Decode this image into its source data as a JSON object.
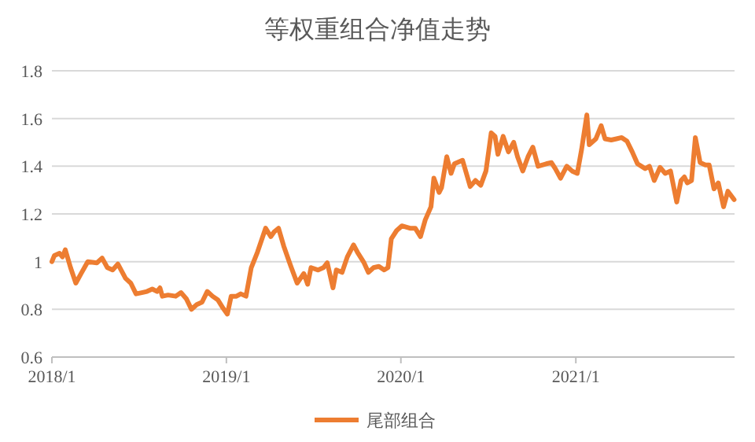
{
  "chart_data": {
    "type": "line",
    "title": "等权重组合净值走势",
    "x": [
      "2018-01-01",
      "2018-01-06",
      "2018-01-17",
      "2018-01-23",
      "2018-01-29",
      "2018-02-09",
      "2018-02-20",
      "2018-03-03",
      "2018-03-17",
      "2018-04-05",
      "2018-04-16",
      "2018-04-27",
      "2018-05-08",
      "2018-05-19",
      "2018-06-04",
      "2018-06-15",
      "2018-06-26",
      "2018-07-08",
      "2018-07-19",
      "2018-07-30",
      "2018-08-09",
      "2018-08-15",
      "2018-08-20",
      "2018-09-01",
      "2018-09-17",
      "2018-09-28",
      "2018-10-09",
      "2018-10-20",
      "2018-10-31",
      "2018-11-11",
      "2018-11-22",
      "2018-12-03",
      "2018-12-14",
      "2018-12-25",
      "2019-01-03",
      "2019-01-11",
      "2019-01-22",
      "2019-01-31",
      "2019-02-11",
      "2019-02-22",
      "2019-03-07",
      "2019-03-24",
      "2019-04-04",
      "2019-04-11",
      "2019-04-20",
      "2019-05-01",
      "2019-05-15",
      "2019-05-29",
      "2019-06-12",
      "2019-06-20",
      "2019-06-27",
      "2019-07-12",
      "2019-07-23",
      "2019-07-31",
      "2019-08-12",
      "2019-08-19",
      "2019-08-31",
      "2019-09-11",
      "2019-09-24",
      "2019-10-02",
      "2019-10-16",
      "2019-10-25",
      "2019-11-05",
      "2019-11-16",
      "2019-11-27",
      "2019-12-05",
      "2019-12-12",
      "2019-12-23",
      "2020-01-03",
      "2020-01-20",
      "2020-01-31",
      "2020-02-11",
      "2020-02-21",
      "2020-03-04",
      "2020-03-10",
      "2020-03-21",
      "2020-03-26",
      "2020-04-06",
      "2020-04-15",
      "2020-04-22",
      "2020-05-09",
      "2020-05-25",
      "2020-06-05",
      "2020-06-16",
      "2020-06-27",
      "2020-07-08",
      "2020-07-16",
      "2020-07-22",
      "2020-08-02",
      "2020-08-13",
      "2020-08-24",
      "2020-09-01",
      "2020-09-12",
      "2020-09-23",
      "2020-10-03",
      "2020-10-14",
      "2020-10-31",
      "2020-11-11",
      "2020-11-19",
      "2020-11-30",
      "2020-12-13",
      "2020-12-24",
      "2021-01-04",
      "2021-01-13",
      "2021-01-24",
      "2021-01-29",
      "2021-02-12",
      "2021-02-23",
      "2021-03-03",
      "2021-03-16",
      "2021-03-27",
      "2021-04-07",
      "2021-04-18",
      "2021-04-29",
      "2021-05-10",
      "2021-05-26",
      "2021-06-04",
      "2021-06-14",
      "2021-06-26",
      "2021-07-07",
      "2021-07-18",
      "2021-07-31",
      "2021-08-09",
      "2021-08-16",
      "2021-08-22",
      "2021-08-31",
      "2021-09-08",
      "2021-09-18",
      "2021-09-29",
      "2021-10-07",
      "2021-10-17",
      "2021-10-26",
      "2021-11-06",
      "2021-11-15",
      "2021-11-28"
    ],
    "series": [
      {
        "name": "尾部组合",
        "color": "#ed7d31",
        "values": [
          1.0,
          1.025,
          1.035,
          1.02,
          1.05,
          0.975,
          0.91,
          0.95,
          1.0,
          0.995,
          1.015,
          0.975,
          0.965,
          0.99,
          0.93,
          0.91,
          0.865,
          0.87,
          0.875,
          0.885,
          0.875,
          0.89,
          0.855,
          0.86,
          0.855,
          0.87,
          0.845,
          0.8,
          0.82,
          0.83,
          0.875,
          0.855,
          0.84,
          0.805,
          0.78,
          0.855,
          0.855,
          0.865,
          0.855,
          0.975,
          1.04,
          1.14,
          1.105,
          1.125,
          1.14,
          1.065,
          0.985,
          0.91,
          0.95,
          0.905,
          0.975,
          0.965,
          0.975,
          0.995,
          0.89,
          0.965,
          0.955,
          1.02,
          1.07,
          1.04,
          0.995,
          0.955,
          0.975,
          0.98,
          0.965,
          0.975,
          1.096,
          1.13,
          1.15,
          1.14,
          1.14,
          1.105,
          1.175,
          1.23,
          1.35,
          1.29,
          1.31,
          1.44,
          1.37,
          1.41,
          1.425,
          1.315,
          1.34,
          1.32,
          1.38,
          1.54,
          1.525,
          1.45,
          1.525,
          1.46,
          1.5,
          1.44,
          1.38,
          1.44,
          1.48,
          1.4,
          1.41,
          1.415,
          1.39,
          1.35,
          1.4,
          1.38,
          1.37,
          1.47,
          1.615,
          1.49,
          1.515,
          1.57,
          1.515,
          1.51,
          1.515,
          1.52,
          1.505,
          1.46,
          1.41,
          1.39,
          1.4,
          1.34,
          1.395,
          1.37,
          1.38,
          1.25,
          1.34,
          1.355,
          1.33,
          1.34,
          1.52,
          1.415,
          1.405,
          1.405,
          1.305,
          1.33,
          1.23,
          1.295,
          1.26
        ]
      }
    ],
    "xlim": [
      "2018-01-01",
      "2021-11-29"
    ],
    "xticks": [
      {
        "value": "2018-01-01",
        "label": "2018/1"
      },
      {
        "value": "2019-01-01",
        "label": "2019/1"
      },
      {
        "value": "2020-01-01",
        "label": "2020/1"
      },
      {
        "value": "2021-01-01",
        "label": "2021/1"
      }
    ],
    "ylim": [
      0.6,
      1.8
    ],
    "yticks": [
      0.6,
      0.8,
      1,
      1.2,
      1.4,
      1.6,
      1.8
    ],
    "grid": "y",
    "legend": "bottom",
    "marker": "none",
    "line_style": "solid"
  }
}
